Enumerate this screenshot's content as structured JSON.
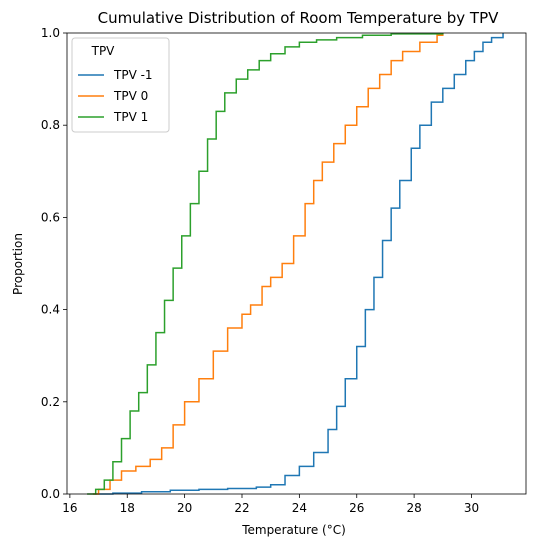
{
  "chart_data": {
    "type": "line",
    "step": true,
    "title": "Cumulative Distribution of Room Temperature by TPV",
    "xlabel": "Temperature (°C)",
    "ylabel": "Proportion",
    "xlim": [
      15.9,
      31.9
    ],
    "ylim": [
      0,
      1
    ],
    "xticks": [
      16,
      18,
      20,
      22,
      24,
      26,
      28,
      30
    ],
    "yticks": [
      0.0,
      0.2,
      0.4,
      0.6,
      0.8,
      1.0
    ],
    "ytick_labels": [
      "0.0",
      "0.2",
      "0.4",
      "0.6",
      "0.8",
      "1.0"
    ],
    "grid": false,
    "legend": {
      "title": "TPV",
      "placement": "top-left"
    },
    "series": [
      {
        "name": "TPV -1",
        "color": "#1f77b4",
        "points": [
          [
            16.9,
            0.0
          ],
          [
            17.5,
            0.002
          ],
          [
            18.5,
            0.005
          ],
          [
            19.5,
            0.008
          ],
          [
            20.5,
            0.01
          ],
          [
            21.5,
            0.012
          ],
          [
            22.5,
            0.015
          ],
          [
            23.0,
            0.02
          ],
          [
            23.5,
            0.04
          ],
          [
            24.0,
            0.06
          ],
          [
            24.5,
            0.09
          ],
          [
            25.0,
            0.14
          ],
          [
            25.3,
            0.19
          ],
          [
            25.6,
            0.25
          ],
          [
            26.0,
            0.32
          ],
          [
            26.3,
            0.4
          ],
          [
            26.6,
            0.47
          ],
          [
            26.9,
            0.55
          ],
          [
            27.2,
            0.62
          ],
          [
            27.5,
            0.68
          ],
          [
            27.9,
            0.75
          ],
          [
            28.2,
            0.8
          ],
          [
            28.6,
            0.85
          ],
          [
            29.0,
            0.88
          ],
          [
            29.4,
            0.91
          ],
          [
            29.8,
            0.94
          ],
          [
            30.1,
            0.96
          ],
          [
            30.4,
            0.98
          ],
          [
            30.7,
            0.99
          ],
          [
            31.1,
            1.0
          ]
        ]
      },
      {
        "name": "TPV 0",
        "color": "#ff7f0e",
        "points": [
          [
            16.8,
            0.0
          ],
          [
            17.0,
            0.01
          ],
          [
            17.4,
            0.03
          ],
          [
            17.8,
            0.05
          ],
          [
            18.3,
            0.06
          ],
          [
            18.8,
            0.075
          ],
          [
            19.2,
            0.1
          ],
          [
            19.6,
            0.15
          ],
          [
            20.0,
            0.2
          ],
          [
            20.5,
            0.25
          ],
          [
            21.0,
            0.31
          ],
          [
            21.5,
            0.36
          ],
          [
            22.0,
            0.39
          ],
          [
            22.3,
            0.41
          ],
          [
            22.7,
            0.45
          ],
          [
            23.0,
            0.47
          ],
          [
            23.4,
            0.5
          ],
          [
            23.8,
            0.56
          ],
          [
            24.2,
            0.63
          ],
          [
            24.5,
            0.68
          ],
          [
            24.8,
            0.72
          ],
          [
            25.2,
            0.76
          ],
          [
            25.6,
            0.8
          ],
          [
            26.0,
            0.84
          ],
          [
            26.4,
            0.88
          ],
          [
            26.8,
            0.91
          ],
          [
            27.2,
            0.94
          ],
          [
            27.6,
            0.96
          ],
          [
            28.2,
            0.98
          ],
          [
            28.8,
            0.995
          ],
          [
            29.0,
            1.0
          ]
        ]
      },
      {
        "name": "TPV 1",
        "color": "#2ca02c",
        "points": [
          [
            16.6,
            0.0
          ],
          [
            16.9,
            0.01
          ],
          [
            17.2,
            0.03
          ],
          [
            17.5,
            0.07
          ],
          [
            17.8,
            0.12
          ],
          [
            18.1,
            0.18
          ],
          [
            18.4,
            0.22
          ],
          [
            18.7,
            0.28
          ],
          [
            19.0,
            0.35
          ],
          [
            19.3,
            0.42
          ],
          [
            19.6,
            0.49
          ],
          [
            19.9,
            0.56
          ],
          [
            20.2,
            0.63
          ],
          [
            20.5,
            0.7
          ],
          [
            20.8,
            0.77
          ],
          [
            21.1,
            0.83
          ],
          [
            21.4,
            0.87
          ],
          [
            21.8,
            0.9
          ],
          [
            22.2,
            0.92
          ],
          [
            22.6,
            0.94
          ],
          [
            23.0,
            0.955
          ],
          [
            23.5,
            0.97
          ],
          [
            24.0,
            0.98
          ],
          [
            24.6,
            0.985
          ],
          [
            25.3,
            0.99
          ],
          [
            26.2,
            0.995
          ],
          [
            27.2,
            0.998
          ],
          [
            29.0,
            1.0
          ]
        ]
      }
    ]
  }
}
